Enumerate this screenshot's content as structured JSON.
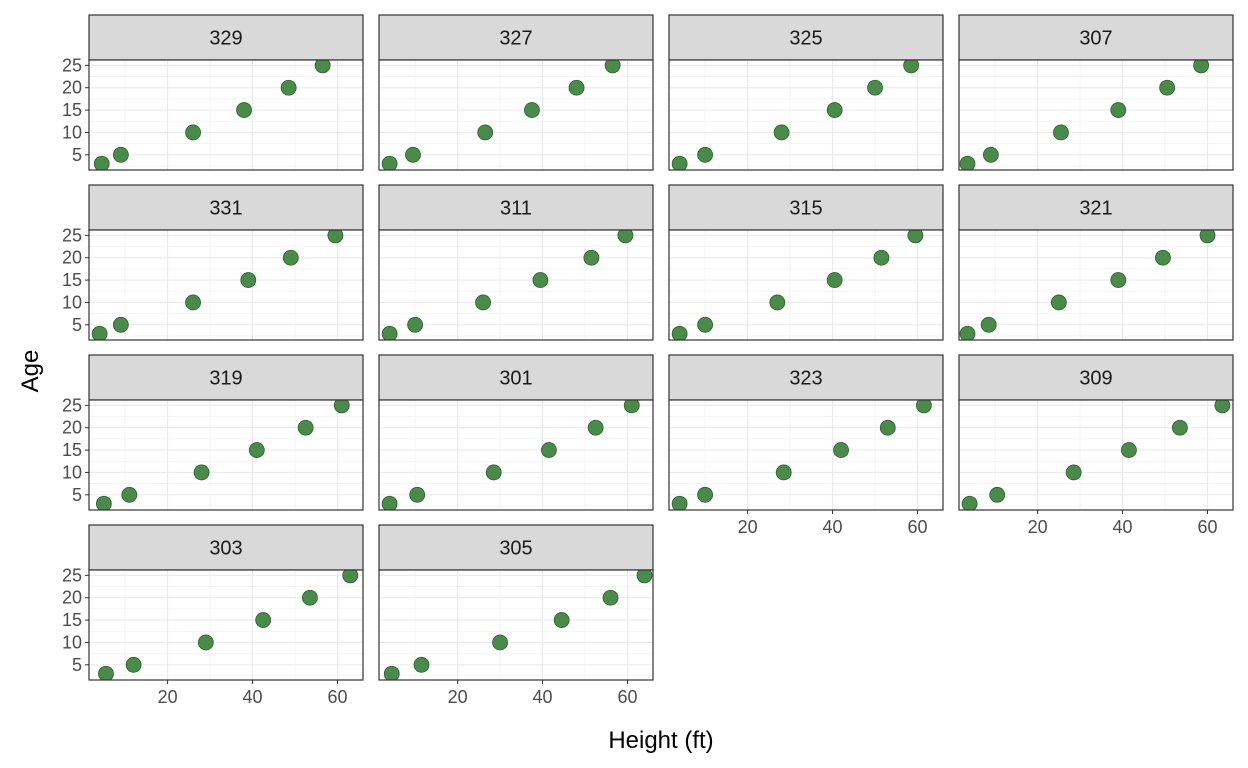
{
  "chart_data": {
    "type": "scatter",
    "xlabel": "Height (ft)",
    "ylabel": "Age",
    "xlim": [
      1.5,
      66
    ],
    "ylim": [
      1.6,
      26.2
    ],
    "x_ticks": [
      20,
      40,
      60
    ],
    "y_ticks": [
      5,
      10,
      15,
      20,
      25
    ],
    "x_minor_ticks": [
      10,
      30,
      50
    ],
    "y_minor_ticks": [
      2.5,
      7.5,
      12.5,
      17.5,
      22.5
    ],
    "grid": true,
    "theme": "bw",
    "point_color": "#4a8a4a",
    "point_edge_color": "#2f5f2f",
    "strip_fill": "#d9d9d9",
    "facets": [
      {
        "label": "329",
        "x": [
          4.5,
          9,
          26,
          38,
          48.5,
          56.5
        ],
        "y": [
          3,
          5,
          10,
          15,
          20,
          25
        ]
      },
      {
        "label": "327",
        "x": [
          4,
          9.5,
          26.5,
          37.5,
          48,
          56.5
        ],
        "y": [
          3,
          5,
          10,
          15,
          20,
          25
        ]
      },
      {
        "label": "325",
        "x": [
          4,
          10,
          28,
          40.5,
          50,
          58.5
        ],
        "y": [
          3,
          5,
          10,
          15,
          20,
          25
        ]
      },
      {
        "label": "307",
        "x": [
          3.5,
          9,
          25.5,
          39,
          50.5,
          58.5
        ],
        "y": [
          3,
          5,
          10,
          15,
          20,
          25
        ]
      },
      {
        "label": "331",
        "x": [
          4,
          9,
          26,
          39,
          49,
          59.5
        ],
        "y": [
          3,
          5,
          10,
          15,
          20,
          25
        ]
      },
      {
        "label": "311",
        "x": [
          4,
          10,
          26,
          39.5,
          51.5,
          59.5
        ],
        "y": [
          3,
          5,
          10,
          15,
          20,
          25
        ]
      },
      {
        "label": "315",
        "x": [
          4,
          10,
          27,
          40.5,
          51.5,
          59.5
        ],
        "y": [
          3,
          5,
          10,
          15,
          20,
          25
        ]
      },
      {
        "label": "321",
        "x": [
          3.5,
          8.5,
          25,
          39,
          49.5,
          60
        ],
        "y": [
          3,
          5,
          10,
          15,
          20,
          25
        ]
      },
      {
        "label": "319",
        "x": [
          5,
          11,
          28,
          41,
          52.5,
          61
        ],
        "y": [
          3,
          5,
          10,
          15,
          20,
          25
        ]
      },
      {
        "label": "301",
        "x": [
          4,
          10.5,
          28.5,
          41.5,
          52.5,
          61
        ],
        "y": [
          3,
          5,
          10,
          15,
          20,
          25
        ]
      },
      {
        "label": "323",
        "x": [
          4,
          10,
          28.5,
          42,
          53,
          61.5
        ],
        "y": [
          3,
          5,
          10,
          15,
          20,
          25
        ]
      },
      {
        "label": "309",
        "x": [
          4,
          10.5,
          28.5,
          41.5,
          53.5,
          63.5
        ],
        "y": [
          3,
          5,
          10,
          15,
          20,
          25
        ]
      },
      {
        "label": "303",
        "x": [
          5.5,
          12,
          29,
          42.5,
          53.5,
          63
        ],
        "y": [
          3,
          5,
          10,
          15,
          20,
          25
        ]
      },
      {
        "label": "305",
        "x": [
          4.5,
          11.5,
          30,
          44.5,
          56,
          64
        ],
        "y": [
          3,
          5,
          10,
          15,
          20,
          25
        ]
      }
    ]
  }
}
